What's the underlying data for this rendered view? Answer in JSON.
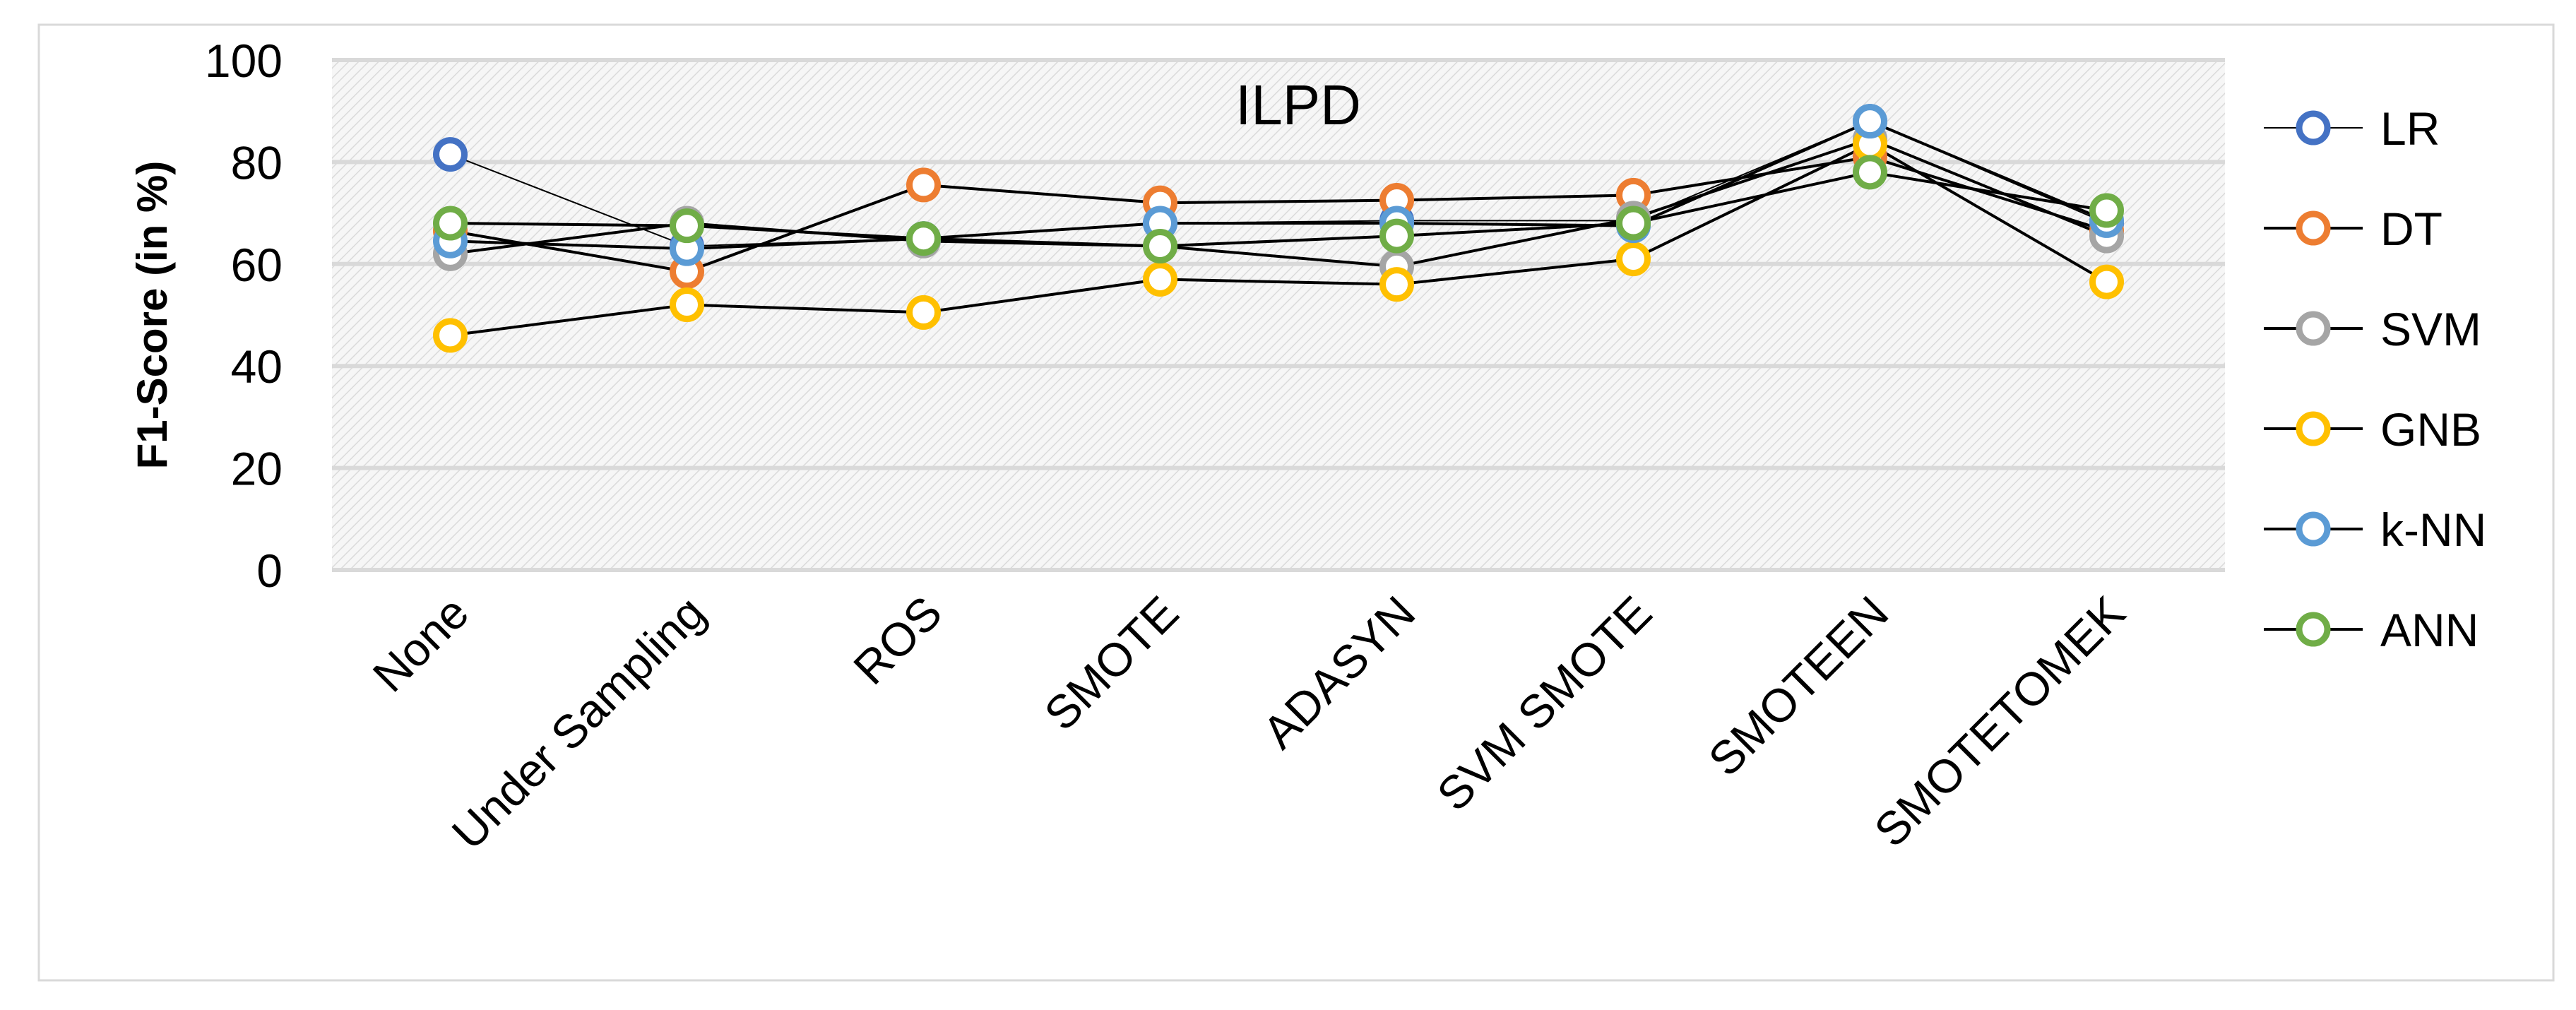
{
  "chart_data": {
    "type": "line",
    "title": "ILPD",
    "xlabel": "",
    "ylabel": "F1-Score (in %)",
    "ylim": [
      0,
      100
    ],
    "yticks": [
      0,
      20,
      40,
      60,
      80,
      100
    ],
    "grid": true,
    "legend_position": "right",
    "categories": [
      "None",
      "Under Sampling",
      "ROS",
      "SMOTE",
      "ADASYN",
      "SVM SMOTE",
      "SMOTEEN",
      "SMOTETOMEK"
    ],
    "series": [
      {
        "name": "LR",
        "color": "#4472C4",
        "values": [
          81.5,
          63.5,
          65.0,
          68.0,
          68.5,
          68.5,
          88.0,
          68.0
        ]
      },
      {
        "name": "DT",
        "color": "#ED7D31",
        "values": [
          66.5,
          58.5,
          75.5,
          72.0,
          72.5,
          73.5,
          81.0,
          66.5
        ]
      },
      {
        "name": "SVM",
        "color": "#A5A5A5",
        "values": [
          62.0,
          68.0,
          64.5,
          63.5,
          59.5,
          69.0,
          84.5,
          65.5
        ]
      },
      {
        "name": "GNB",
        "color": "#FFC000",
        "values": [
          46.0,
          52.0,
          50.5,
          57.0,
          56.0,
          61.0,
          83.5,
          56.5
        ]
      },
      {
        "name": "k-NN",
        "color": "#5B9BD5",
        "values": [
          64.5,
          63.0,
          65.0,
          68.0,
          68.0,
          67.5,
          88.0,
          68.5
        ]
      },
      {
        "name": "ANN",
        "color": "#70AD47",
        "values": [
          68.0,
          67.5,
          65.0,
          63.5,
          65.5,
          68.0,
          78.0,
          70.5
        ]
      }
    ]
  }
}
